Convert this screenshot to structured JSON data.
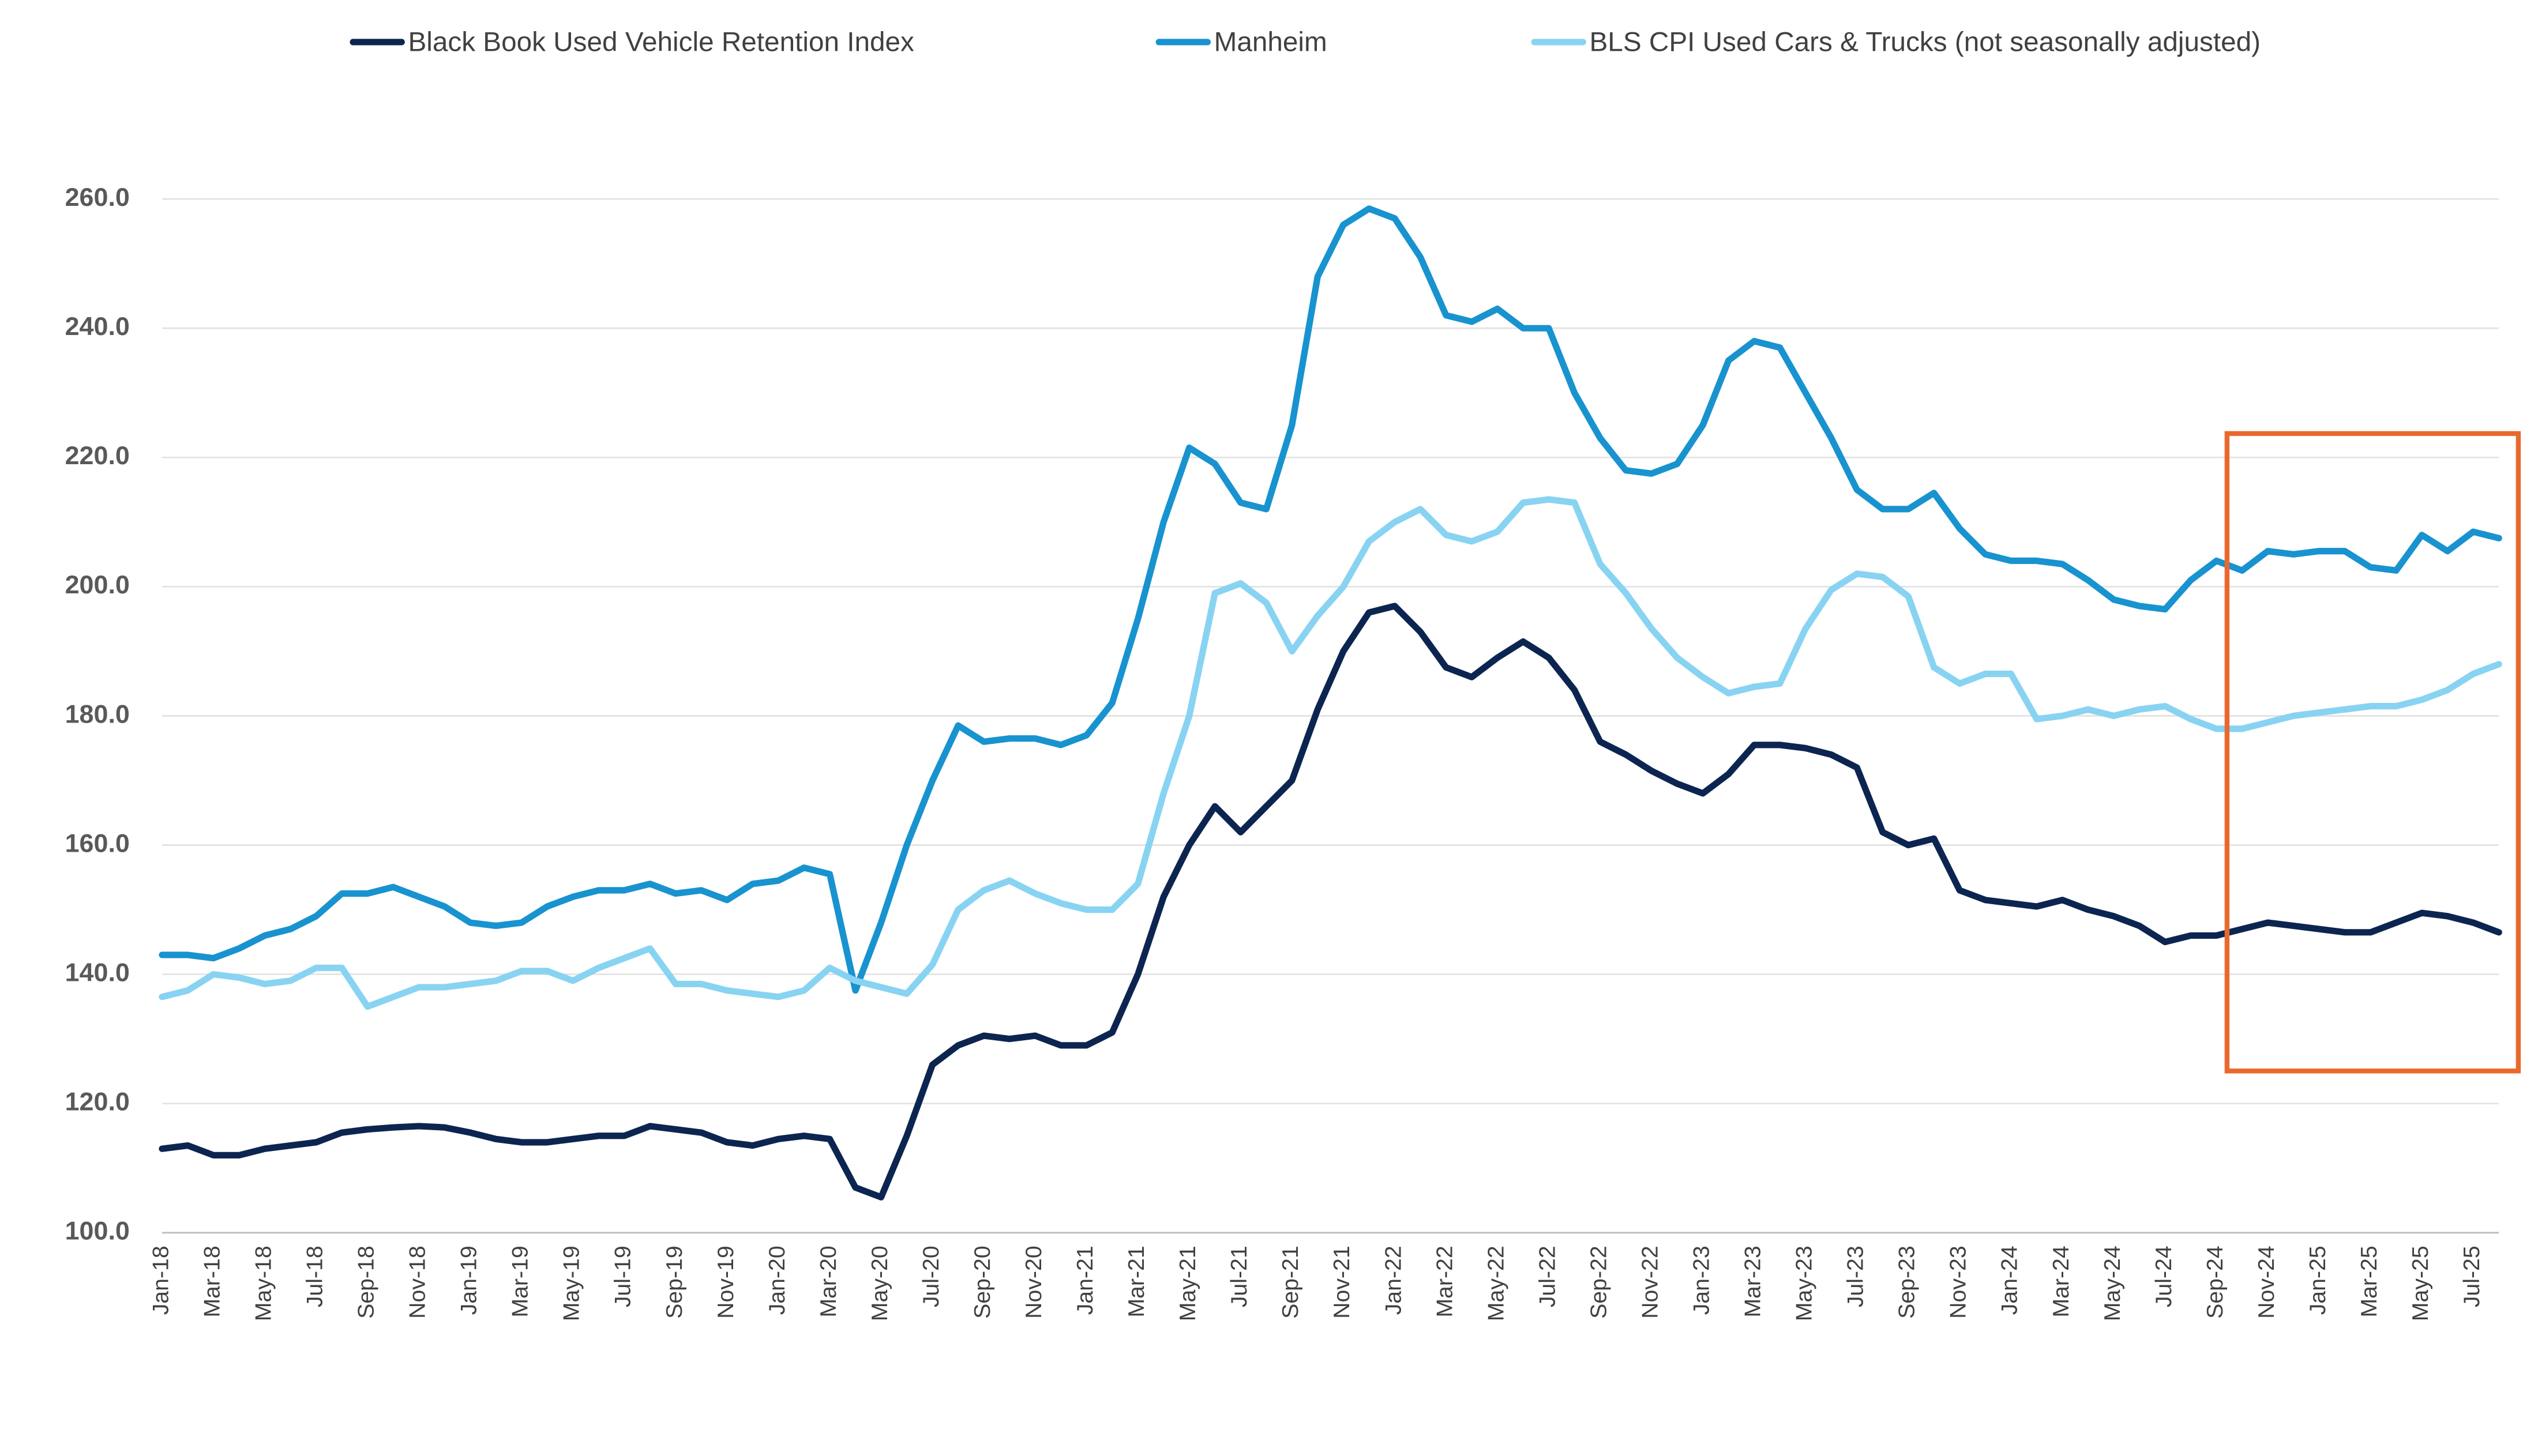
{
  "chart_data": {
    "type": "line",
    "categories": [
      "Jan-18",
      null,
      "Mar-18",
      null,
      "May-18",
      null,
      "Jul-18",
      null,
      "Sep-18",
      null,
      "Nov-18",
      null,
      "Jan-19",
      null,
      "Mar-19",
      null,
      "May-19",
      null,
      "Jul-19",
      null,
      "Sep-19",
      null,
      "Nov-19",
      null,
      "Jan-20",
      null,
      "Mar-20",
      null,
      "May-20",
      null,
      "Jul-20",
      null,
      "Sep-20",
      null,
      "Nov-20",
      null,
      "Jan-21",
      null,
      "Mar-21",
      null,
      "May-21",
      null,
      "Jul-21",
      null,
      "Sep-21",
      null,
      "Nov-21",
      null,
      "Jan-22",
      null,
      "Mar-22",
      null,
      "May-22",
      null,
      "Jul-22",
      null,
      "Sep-22",
      null,
      "Nov-22",
      null,
      "Jan-23",
      null,
      "Mar-23",
      null,
      "May-23",
      null,
      "Jul-23",
      null,
      "Sep-23",
      null,
      "Nov-23",
      null,
      "Jan-24",
      null,
      "Mar-24",
      null,
      "May-24",
      null,
      "Jul-24",
      null,
      "Sep-24",
      null,
      "Nov-24",
      null,
      "Jan-25",
      null,
      "Mar-25",
      null,
      "May-25",
      null,
      "Jul-25",
      null
    ],
    "series": [
      {
        "name": "Black Book Used Vehicle Retention Index",
        "color": "#0c2550",
        "values": [
          113,
          113.5,
          112,
          112,
          113,
          113.5,
          114,
          115.5,
          116,
          116.3,
          116.5,
          116.3,
          115.5,
          114.5,
          114,
          114,
          114.5,
          115,
          115,
          116.5,
          116,
          115.5,
          114,
          113.5,
          114.5,
          115,
          114.5,
          107,
          105.5,
          115,
          126,
          129,
          130.5,
          130,
          130.5,
          129,
          129,
          131,
          140,
          152,
          160,
          166,
          162,
          166,
          170,
          181,
          190,
          196,
          197,
          193,
          187.5,
          186,
          189,
          191.5,
          189,
          184,
          176,
          174,
          171.5,
          169.5,
          168,
          171,
          175.5,
          175.5,
          175,
          174,
          172,
          162,
          160,
          161,
          153,
          151.5,
          151,
          150.5,
          151.5,
          150,
          149,
          147.5,
          145,
          146,
          146,
          147,
          148,
          147.5,
          147,
          146.5,
          146.5,
          148,
          149.5,
          149,
          148,
          146.5
        ]
      },
      {
        "name": "Manheim",
        "color": "#1893cf",
        "values": [
          143,
          143,
          142.5,
          144,
          146,
          147,
          149,
          152.5,
          152.5,
          153.5,
          152,
          150.5,
          148,
          147.5,
          148,
          150.5,
          152,
          153,
          153,
          154,
          152.5,
          153,
          151.5,
          154,
          154.5,
          156.5,
          155.5,
          137.5,
          148,
          160,
          170,
          178.5,
          176,
          176.5,
          176.5,
          175.5,
          177,
          182,
          195,
          210,
          221.5,
          219,
          213,
          212,
          225,
          248,
          256,
          258.5,
          257,
          251,
          242,
          241,
          243,
          240,
          240,
          230,
          223,
          218,
          217.5,
          219,
          225,
          235,
          238,
          237,
          230,
          223,
          215,
          212,
          212,
          214.5,
          209,
          205,
          204,
          204,
          203.5,
          201,
          198,
          197,
          196.5,
          201,
          204,
          202.5,
          205.5,
          205,
          205.5,
          205.5,
          203,
          202.5,
          208,
          205.5,
          208.5,
          207.5
        ]
      },
      {
        "name": "BLS CPI Used Cars & Trucks (not seasonally adjusted)",
        "color": "#88d3f2",
        "values": [
          136.5,
          137.5,
          140,
          139.5,
          138.5,
          139,
          141,
          141,
          135,
          136.5,
          138,
          138,
          138.5,
          139,
          140.5,
          140.5,
          139,
          141,
          142.5,
          144,
          138.5,
          138.5,
          137.5,
          137,
          136.5,
          137.5,
          141,
          139,
          138,
          137,
          141.5,
          150,
          153,
          154.5,
          152.5,
          151,
          150,
          150,
          154,
          168,
          180,
          199,
          200.5,
          197.5,
          190,
          195.5,
          200,
          207,
          210,
          212,
          208,
          207,
          208.5,
          213,
          213.5,
          213,
          203.5,
          199,
          193.5,
          189,
          186,
          183.5,
          184.5,
          185,
          193.5,
          199.5,
          202,
          201.5,
          198.5,
          187.5,
          185,
          186.5,
          186.5,
          179.5,
          180,
          181,
          180,
          181,
          181.5,
          179.5,
          178,
          178,
          179,
          180,
          180.5,
          181,
          181.5,
          181.5,
          182.5,
          184,
          186.5,
          188
        ]
      }
    ],
    "ylim": [
      100,
      260
    ],
    "yticks": [
      {
        "value": 100,
        "label": "100.0"
      },
      {
        "value": 120,
        "label": "120.0"
      },
      {
        "value": 140,
        "label": "140.0"
      },
      {
        "value": 160,
        "label": "160.0"
      },
      {
        "value": 180,
        "label": "180.0"
      },
      {
        "value": 200,
        "label": "200.0"
      },
      {
        "value": 220,
        "label": "220.0"
      },
      {
        "value": 240,
        "label": "240.0"
      },
      {
        "value": 260,
        "label": "260.0"
      }
    ],
    "grid": true,
    "legend": "top"
  }
}
